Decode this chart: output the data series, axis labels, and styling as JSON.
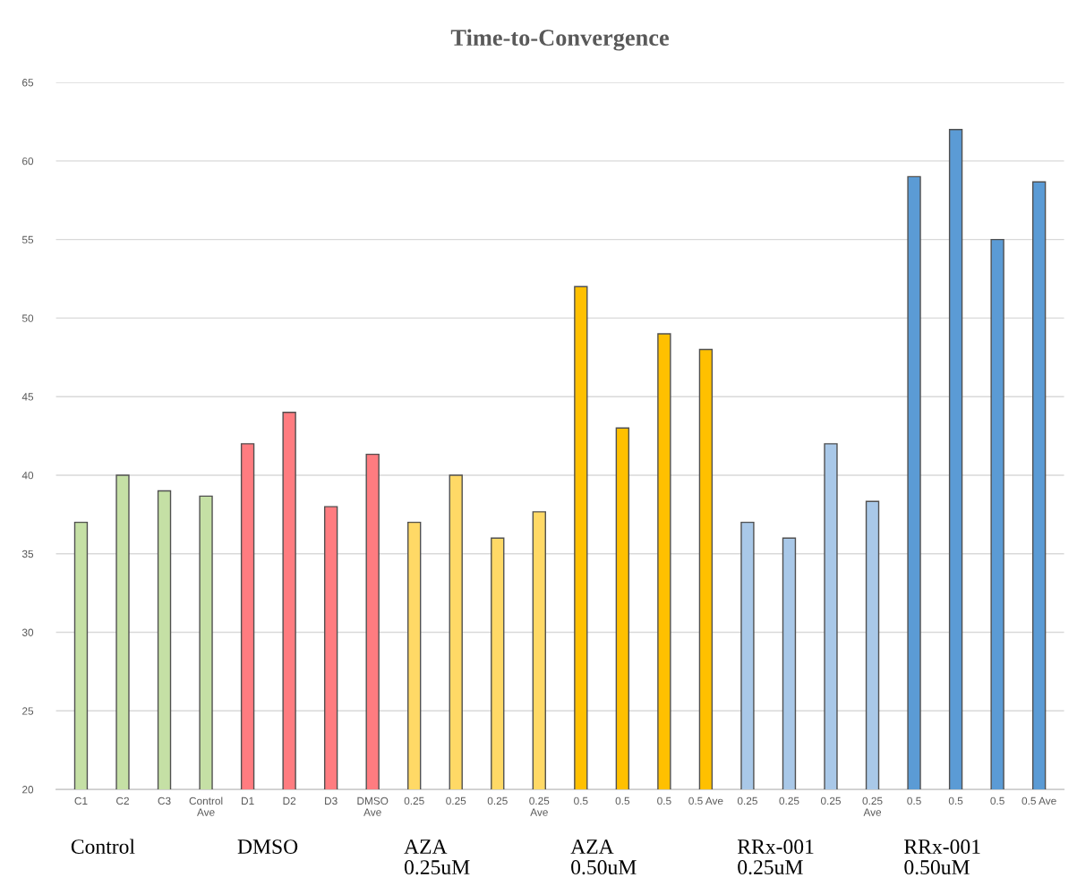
{
  "chart_data": {
    "type": "bar",
    "title": "Time-to-Convergence",
    "categories": [
      "C1",
      "C2",
      "C3",
      "Control\nAve",
      "D1",
      "D2",
      "D3",
      "DMSO\nAve",
      "0.25",
      "0.25",
      "0.25",
      "0.25\nAve",
      "0.5",
      "0.5",
      "0.5",
      "0.5 Ave",
      "0.25",
      "0.25",
      "0.25",
      "0.25\nAve",
      "0.5",
      "0.5",
      "0.5",
      "0.5 Ave"
    ],
    "values": [
      37,
      40,
      39,
      38.67,
      42,
      44,
      38,
      41.33,
      37,
      40,
      36,
      37.67,
      52,
      43,
      49,
      48,
      37,
      36,
      42,
      38.33,
      59,
      62,
      55,
      58.67
    ],
    "colors": [
      "#c5e0a5",
      "#c5e0a5",
      "#c5e0a5",
      "#c5e0a5",
      "#ff7c80",
      "#ff7c80",
      "#ff7c80",
      "#ff7c80",
      "#ffd966",
      "#ffd966",
      "#ffd966",
      "#ffd966",
      "#ffc000",
      "#ffc000",
      "#ffc000",
      "#ffc000",
      "#a9c8e8",
      "#a9c8e8",
      "#a9c8e8",
      "#a9c8e8",
      "#5b9bd5",
      "#5b9bd5",
      "#5b9bd5",
      "#5b9bd5"
    ],
    "ylim": [
      20,
      65
    ],
    "yticks": [
      20,
      25,
      30,
      35,
      40,
      45,
      50,
      55,
      60,
      65
    ],
    "grid": "y",
    "annotations": [
      "Control",
      "DMSO",
      "AZA\n0.25uM",
      "AZA\n0.50uM",
      "RRx-001\n0.25uM",
      "RRx-001\n0.50uM"
    ]
  }
}
